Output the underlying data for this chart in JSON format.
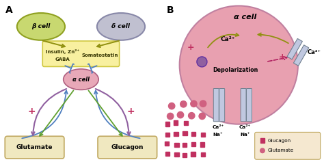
{
  "bg_color": "#ffffff",
  "panel_A_label": "A",
  "panel_B_label": "B",
  "beta_cell_label": "β cell",
  "delta_cell_label": "δ cell",
  "alpha_cell_label_A": "α cell",
  "alpha_cell_label_B": "α cell",
  "insulin_line1": "Insulin, Zn²⁺",
  "insulin_line2": "GABA",
  "somatostatin_label": "Somatostatin",
  "glutamate_label": "Glutamate",
  "glucagon_label": "Glucagon",
  "depolarization_label": "Depolarization",
  "ca2plus": "Ca²⁺",
  "na_plus": "Na⁺",
  "plus_sign": "+",
  "legend_glucagon": "Glucagon",
  "legend_glutamate": "Glutamate",
  "beta_cell_color": "#c8d870",
  "beta_cell_edge": "#8fa020",
  "delta_cell_color": "#c0c0d0",
  "delta_cell_edge": "#8888a8",
  "alpha_cell_color_A": "#e8a8b8",
  "alpha_cell_color_B": "#e8a0b0",
  "yellow_box_color": "#f8f0a0",
  "yellow_box_edge": "#d0c840",
  "glutamate_box_color": "#f0e8c0",
  "glucagon_box_color": "#f0e8c0",
  "arrow_olive": "#909010",
  "arrow_blue": "#5080c0",
  "arrow_purple": "#9060a0",
  "arrow_green": "#60a030",
  "arrow_pink_dashed": "#b02060",
  "plus_color": "#c03060",
  "channel_color_top": "#c0c8e0",
  "channel_color_bot": "#a0b8d0",
  "glucagon_dot_color": "#c03060",
  "glutamate_dot_color": "#d06080",
  "legend_box_color": "#f5e8d0",
  "vesicle_color": "#9060a0"
}
